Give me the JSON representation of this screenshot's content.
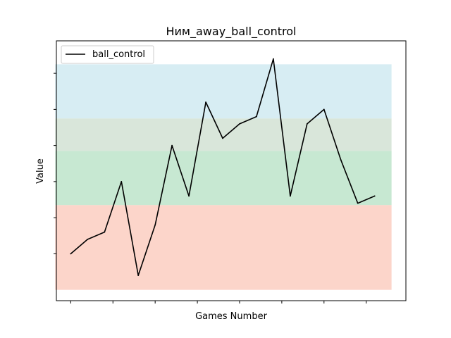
{
  "chart_data": {
    "type": "line",
    "title": "Ним_away_ball_control",
    "xlabel": "Games Number",
    "ylabel": "Value",
    "legend": {
      "placement": "top-left"
    },
    "grid": false,
    "x": [
      1,
      2,
      3,
      4,
      5,
      6,
      7,
      8,
      9,
      10,
      11,
      12,
      13,
      14,
      15,
      16,
      17,
      18,
      19,
      20
    ],
    "xlim": [
      0.15,
      20.85
    ],
    "ylim": [
      -0.3,
      6.9
    ],
    "series": [
      {
        "name": "ball_control",
        "color": "#000000",
        "values": [
          1.0,
          1.4,
          1.6,
          3.0,
          0.4,
          1.8,
          4.0,
          2.6,
          5.2,
          4.2,
          4.6,
          4.8,
          6.4,
          2.6,
          4.6,
          5.0,
          3.6,
          2.4,
          2.6,
          null
        ]
      }
    ],
    "bands": [
      {
        "color": "#fbbfae",
        "from": 0.0,
        "to": 2.35
      },
      {
        "color": "#a9dbba",
        "from": 2.35,
        "to": 3.85
      },
      {
        "color": "#c5d9c6",
        "from": 3.85,
        "to": 4.75
      },
      {
        "color": "#c2e4ec",
        "from": 4.75,
        "to": 6.25
      }
    ],
    "xticks": [
      1,
      3.5,
      6,
      8.5,
      11,
      13.5,
      16,
      18.5
    ],
    "yticks": [
      1,
      2,
      3,
      4,
      5,
      6
    ]
  }
}
